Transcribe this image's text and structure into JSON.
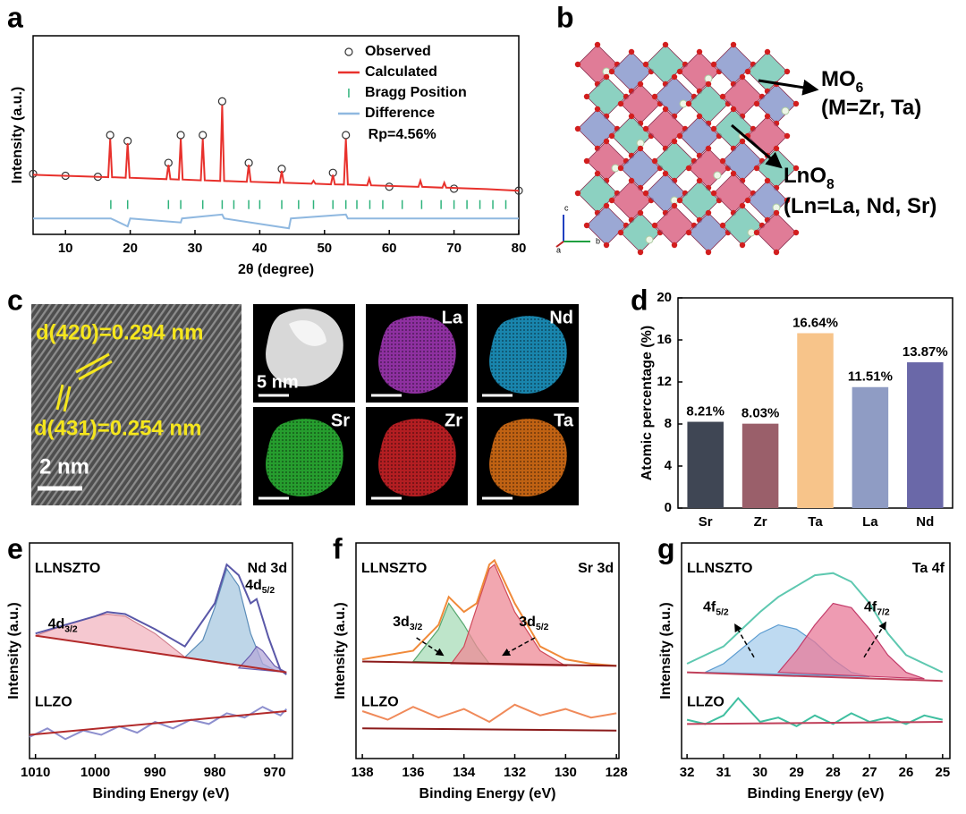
{
  "panel_labels": [
    "a",
    "b",
    "c",
    "d",
    "e",
    "f",
    "g"
  ],
  "structure": {
    "labels": [
      {
        "text": "MO",
        "sub": "6"
      },
      {
        "text": "(M=Zr, Ta)"
      },
      {
        "text": "LnO",
        "sub": "8"
      },
      {
        "text": "(Ln=La, Nd, Sr)"
      }
    ],
    "axes": [
      "c",
      "a",
      "b"
    ]
  },
  "microscopy": {
    "lattice_labels": [
      "d(420)=0.294 nm",
      "d(431)=0.254 nm"
    ],
    "hrtem_scale": "2 nm",
    "haadf_scale": "5 nm",
    "maps": [
      {
        "label": "La",
        "color": "#b23cc8"
      },
      {
        "label": "Nd",
        "color": "#1fa6d8"
      },
      {
        "label": "Sr",
        "color": "#2fc43a"
      },
      {
        "label": "Zr",
        "color": "#e0262a"
      },
      {
        "label": "Ta",
        "color": "#f07a18"
      }
    ]
  },
  "chart_data": [
    {
      "type": "line",
      "xlabel": "2θ (degree)",
      "ylabel": "Intensity (a.u.)",
      "xlim": [
        5,
        80
      ],
      "xticks": [
        10,
        20,
        30,
        40,
        50,
        60,
        70,
        80
      ],
      "ylim": [
        0,
        100
      ],
      "legend": "upper right",
      "annotations": [
        {
          "text": "Rp=4.56%"
        }
      ],
      "series": [
        {
          "name": "Observed",
          "mark": "circle",
          "color": "#333333",
          "x": [
            5,
            10,
            15,
            16.9,
            19.6,
            25.9,
            27.8,
            31.2,
            34.2,
            38.3,
            43.4,
            51.3,
            53.3,
            60,
            70,
            80
          ],
          "values": [
            30.5,
            29.5,
            29,
            50,
            47,
            36,
            50,
            50,
            67,
            36,
            33,
            31,
            50,
            24,
            23,
            22
          ]
        },
        {
          "name": "Calculated",
          "mark": "line",
          "color": "#e8312c",
          "x": [
            5,
            8,
            12,
            16.6,
            16.9,
            17.2,
            19.3,
            19.6,
            19.9,
            25.6,
            25.9,
            26.2,
            27.5,
            27.8,
            28.1,
            30.9,
            31.2,
            31.5,
            33.9,
            34.2,
            34.5,
            38,
            38.3,
            38.6,
            43.1,
            43.4,
            43.7,
            48,
            48.3,
            48.6,
            51,
            51.3,
            51.6,
            53,
            53.3,
            53.6,
            56.6,
            56.9,
            57.2,
            64.5,
            64.8,
            65.1,
            68.2,
            68.5,
            68.8,
            75,
            80
          ],
          "values": [
            30,
            29.7,
            29.3,
            28.8,
            48,
            28.8,
            28.5,
            46,
            28.5,
            27.8,
            35,
            27.8,
            27.6,
            48,
            27.6,
            27.2,
            48,
            27.2,
            26.9,
            65,
            26.9,
            26.5,
            35,
            26.5,
            26,
            32,
            26,
            25.5,
            27,
            25.5,
            25.2,
            30,
            25.2,
            25.1,
            48,
            25.1,
            24.7,
            28,
            24.7,
            23.9,
            27,
            23.9,
            23.5,
            26,
            23.5,
            22.8,
            22
          ]
        },
        {
          "name": "Bragg Position",
          "mark": "tick",
          "color": "#2fb37c",
          "x": [
            17,
            19.6,
            25.9,
            27.8,
            31.2,
            34.2,
            36,
            38.3,
            40,
            43.4,
            46,
            48.3,
            51.3,
            53.3,
            55,
            57,
            59,
            62,
            65,
            68,
            70,
            72,
            74,
            76,
            78
          ],
          "values": [
            15,
            15,
            15,
            15,
            15,
            15,
            15,
            15,
            15,
            15,
            15,
            15,
            15,
            15,
            15,
            15,
            15,
            15,
            15,
            15,
            15,
            15,
            15,
            15,
            15
          ]
        },
        {
          "name": "Difference",
          "mark": "line",
          "color": "#8fb8e0",
          "x": [
            5,
            17,
            19.6,
            20,
            27.8,
            28,
            34.2,
            34.5,
            44.5,
            44.8,
            53.3,
            53.6,
            80
          ],
          "values": [
            8,
            8,
            4,
            8,
            6,
            8,
            10,
            8,
            3,
            8,
            10,
            8,
            8
          ]
        }
      ]
    },
    {
      "type": "bar",
      "ylabel": "Atomic percentage (%)",
      "categories": [
        "Sr",
        "Zr",
        "Ta",
        "La",
        "Nd"
      ],
      "values": [
        8.21,
        8.03,
        16.64,
        11.51,
        13.87
      ],
      "value_labels": [
        "8.21%",
        "8.03%",
        "16.64%",
        "11.51%",
        "13.87%"
      ],
      "colors": [
        "#3f4654",
        "#9a5f6a",
        "#f7c48a",
        "#8f9cc4",
        "#6a68a8"
      ],
      "ylim": [
        0,
        20
      ],
      "yticks": [
        0,
        4,
        8,
        12,
        16,
        20
      ]
    },
    {
      "type": "line",
      "xlabel": "Binding Energy (eV)",
      "ylabel": "Intensity (a.u.)",
      "xlim": [
        1011,
        967
      ],
      "xticks": [
        1010,
        1000,
        990,
        980,
        970
      ],
      "ylim": [
        0,
        100
      ],
      "annotations": [
        {
          "text": "LLNSZTO"
        },
        {
          "text": "Nd 3d"
        },
        {
          "text": "4d",
          "sub": "3/2"
        },
        {
          "text": "4d",
          "sub": "5/2"
        },
        {
          "text": "LLZO"
        }
      ],
      "series": [
        {
          "mark": "area",
          "color": "#d0808f",
          "fill": "#f2b6c0",
          "x": [
            1010,
            1005,
            1000,
            998,
            995,
            990,
            985
          ],
          "values": [
            57,
            62,
            66,
            67,
            66,
            58,
            47
          ]
        },
        {
          "mark": "area",
          "color": "#5b8cb8",
          "fill": "#a8c8e0",
          "x": [
            985,
            982,
            980,
            978,
            976,
            974,
            972,
            970
          ],
          "values": [
            47,
            55,
            70,
            88,
            80,
            58,
            44,
            41
          ]
        },
        {
          "mark": "area",
          "color": "#6a5fb0",
          "fill": "#b4a8d8",
          "x": [
            976,
            974,
            973,
            972,
            970,
            968
          ],
          "values": [
            42,
            48,
            52,
            50,
            43,
            40
          ]
        },
        {
          "mark": "line",
          "color": "#5a58a8",
          "x": [
            1010,
            1005,
            1000,
            998,
            995,
            990,
            985,
            980,
            978,
            976,
            974,
            973,
            971,
            969,
            968
          ],
          "values": [
            58,
            62,
            66,
            68,
            67,
            60,
            52,
            72,
            90,
            85,
            72,
            74,
            56,
            41,
            39
          ]
        },
        {
          "mark": "line",
          "color": "#b22a2a",
          "x": [
            1010,
            968
          ],
          "values": [
            57,
            40
          ]
        },
        {
          "mark": "line",
          "color": "#8d8fce",
          "x": [
            1011,
            1008,
            1005,
            1002,
            999,
            996,
            993,
            990,
            987,
            984,
            981,
            978,
            975,
            972,
            969,
            968
          ],
          "values": [
            10,
            14,
            9,
            13,
            11,
            15,
            12,
            17,
            14,
            18,
            16,
            21,
            19,
            24,
            20,
            23
          ]
        },
        {
          "mark": "line",
          "color": "#b22a2a",
          "x": [
            1011,
            968
          ],
          "values": [
            11,
            22
          ]
        }
      ]
    },
    {
      "type": "line",
      "xlabel": "Binding Energy (eV)",
      "ylabel": "Intensity (a.u.)",
      "xlim": [
        138.25,
        127.9
      ],
      "xticks": [
        138,
        136,
        134,
        132,
        130,
        128
      ],
      "ylim": [
        0,
        100
      ],
      "annotations": [
        {
          "text": "LLNSZTO"
        },
        {
          "text": "Sr 3d"
        },
        {
          "text": "3d",
          "sub": "3/2"
        },
        {
          "text": "3d",
          "sub": "5/2"
        },
        {
          "text": "LLZO"
        }
      ],
      "series": [
        {
          "mark": "area",
          "color": "#58a870",
          "fill": "#a8dcb8",
          "x": [
            136,
            135,
            134.6,
            134,
            133.5,
            133
          ],
          "values": [
            45,
            60,
            72,
            62,
            52,
            44
          ]
        },
        {
          "mark": "area",
          "color": "#d04a5a",
          "fill": "#ee8a96",
          "x": [
            134.5,
            134,
            133.5,
            133,
            132.8,
            132,
            131,
            130
          ],
          "values": [
            44,
            52,
            70,
            88,
            90,
            68,
            50,
            43
          ]
        },
        {
          "mark": "line",
          "color": "#f08a3a",
          "x": [
            138,
            136,
            135,
            134.6,
            134,
            133.5,
            133,
            132.8,
            132,
            131,
            130,
            129,
            128
          ],
          "values": [
            46,
            50,
            62,
            75,
            68,
            72,
            90,
            92,
            72,
            52,
            46,
            44,
            43
          ]
        },
        {
          "mark": "line",
          "color": "#8b1a1a",
          "x": [
            138,
            128
          ],
          "values": [
            45,
            43
          ]
        },
        {
          "mark": "line",
          "color": "#f08a5a",
          "x": [
            138,
            137,
            136,
            135,
            134,
            133,
            132,
            131,
            130,
            129,
            128
          ],
          "values": [
            22,
            18,
            24,
            19,
            23,
            17,
            25,
            20,
            23,
            19,
            21
          ]
        },
        {
          "mark": "line",
          "color": "#8b1a1a",
          "x": [
            138,
            128
          ],
          "values": [
            14,
            13
          ]
        }
      ]
    },
    {
      "type": "line",
      "xlabel": "Binding Energy (eV)",
      "ylabel": "Intensity (a.u.)",
      "xlim": [
        32.15,
        24.8
      ],
      "xticks": [
        32,
        31,
        30,
        29,
        28,
        27,
        26,
        25
      ],
      "ylim": [
        0,
        100
      ],
      "annotations": [
        {
          "text": "LLNSZTO"
        },
        {
          "text": "Ta 4f"
        },
        {
          "text": "4f",
          "sub": "5/2"
        },
        {
          "text": "4f",
          "sub": "7/2"
        },
        {
          "text": "LLZO"
        }
      ],
      "series": [
        {
          "mark": "area",
          "color": "#5b9bd0",
          "fill": "#a8cdec",
          "x": [
            31.5,
            31,
            30,
            29.5,
            29,
            28.5,
            28,
            27.5,
            27
          ],
          "values": [
            40,
            44,
            58,
            62,
            60,
            54,
            46,
            40,
            38
          ]
        },
        {
          "mark": "area",
          "color": "#c33c6a",
          "fill": "#e87a98",
          "x": [
            29.5,
            29,
            28.5,
            28,
            27.5,
            27,
            26.5,
            26,
            25.5
          ],
          "values": [
            40,
            50,
            62,
            72,
            70,
            60,
            48,
            40,
            37
          ]
        },
        {
          "mark": "line",
          "color": "#5ec8b0",
          "x": [
            32,
            31,
            30,
            29.5,
            29,
            28.5,
            28,
            27.5,
            27,
            26.5,
            26,
            25
          ],
          "values": [
            44,
            52,
            68,
            75,
            80,
            85,
            86,
            82,
            72,
            58,
            48,
            40
          ]
        },
        {
          "mark": "line",
          "color": "#c0405a",
          "x": [
            32,
            25
          ],
          "values": [
            40,
            36
          ]
        },
        {
          "mark": "line",
          "color": "#3fbfa0",
          "x": [
            32,
            31.5,
            31,
            30.6,
            30,
            29.5,
            29,
            28.5,
            28,
            27.5,
            27,
            26.5,
            26,
            25.5,
            25
          ],
          "values": [
            18,
            16,
            20,
            28,
            17,
            19,
            15,
            20,
            16,
            21,
            17,
            19,
            16,
            20,
            18
          ]
        },
        {
          "mark": "line",
          "color": "#c0405a",
          "x": [
            32,
            25
          ],
          "values": [
            16,
            17
          ]
        }
      ]
    }
  ]
}
